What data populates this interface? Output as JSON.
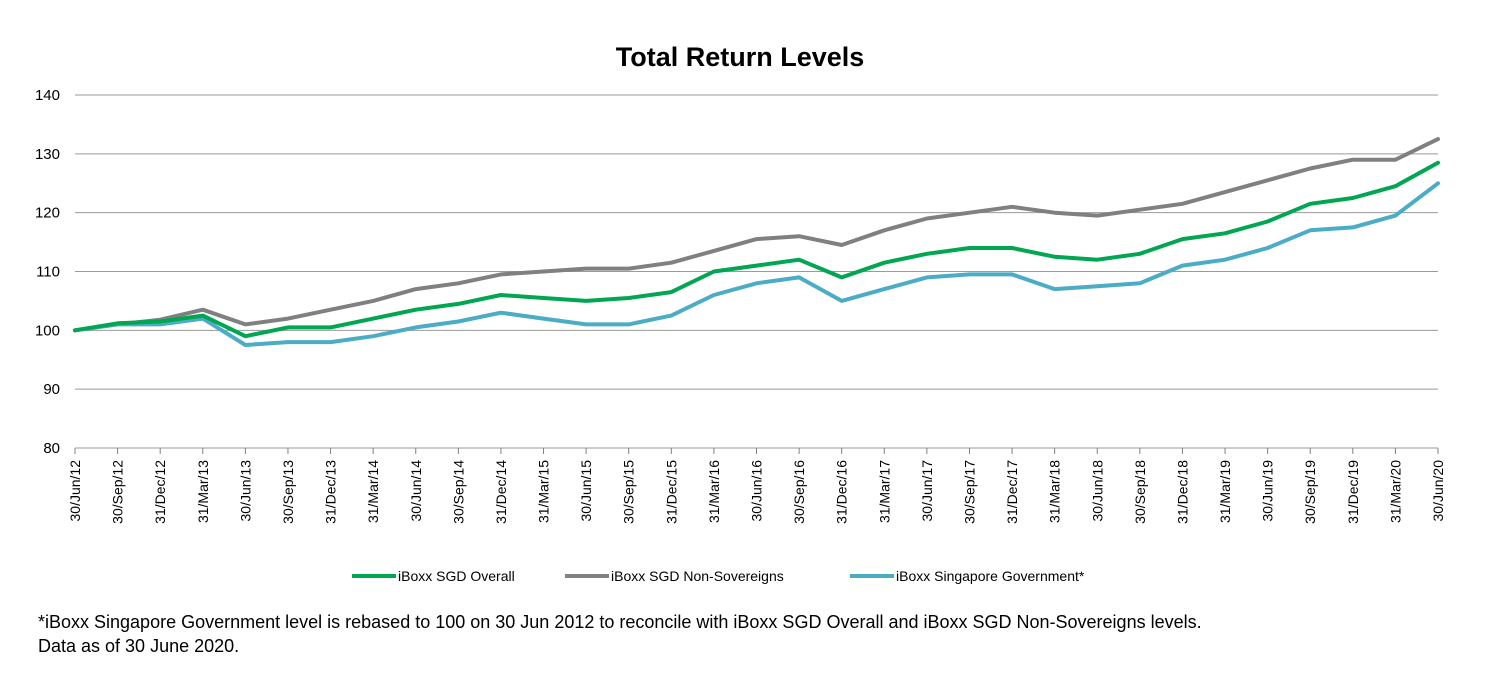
{
  "chart_data": {
    "type": "line",
    "title": "Total Return Levels",
    "xlabel": "",
    "ylabel": "",
    "ylim": [
      80,
      140
    ],
    "yticks": [
      "80",
      "90",
      "100",
      "110",
      "120",
      "130",
      "140"
    ],
    "grid": true,
    "legend_position": "bottom",
    "x": [
      "30/Jun/12",
      "30/Sep/12",
      "31/Dec/12",
      "31/Mar/13",
      "30/Jun/13",
      "30/Sep/13",
      "31/Dec/13",
      "31/Mar/14",
      "30/Jun/14",
      "30/Sep/14",
      "31/Dec/14",
      "31/Mar/15",
      "30/Jun/15",
      "30/Sep/15",
      "31/Dec/15",
      "31/Mar/16",
      "30/Jun/16",
      "30/Sep/16",
      "31/Dec/16",
      "31/Mar/17",
      "30/Jun/17",
      "30/Sep/17",
      "31/Dec/17",
      "31/Mar/18",
      "30/Jun/18",
      "30/Sep/18",
      "31/Dec/18",
      "31/Mar/19",
      "30/Jun/19",
      "30/Sep/19",
      "31/Dec/19",
      "31/Mar/20",
      "30/Jun/20"
    ],
    "series": [
      {
        "name": "iBoxx SGD Overall",
        "color": "#00a651",
        "values": [
          100.0,
          101.2,
          101.5,
          102.5,
          99.0,
          100.5,
          100.5,
          102.0,
          103.5,
          104.5,
          106.0,
          105.5,
          105.0,
          105.5,
          106.5,
          110.0,
          111.0,
          112.0,
          109.0,
          111.5,
          113.0,
          114.0,
          114.0,
          112.5,
          112.0,
          113.0,
          115.5,
          116.5,
          118.5,
          121.5,
          122.5,
          124.5,
          128.5
        ]
      },
      {
        "name": "iBoxx SGD Non-Sovereigns",
        "color": "#808080",
        "values": [
          100.0,
          101.0,
          101.8,
          103.5,
          101.0,
          102.0,
          103.5,
          105.0,
          107.0,
          108.0,
          109.5,
          110.0,
          110.5,
          110.5,
          111.5,
          113.5,
          115.5,
          116.0,
          114.5,
          117.0,
          119.0,
          120.0,
          121.0,
          120.0,
          119.5,
          120.5,
          121.5,
          123.5,
          125.5,
          127.5,
          129.0,
          129.0,
          132.5
        ]
      },
      {
        "name": "iBoxx Singapore Government*",
        "color": "#4bacc6",
        "values": [
          100.0,
          101.0,
          101.0,
          102.0,
          97.5,
          98.0,
          98.0,
          99.0,
          100.5,
          101.5,
          103.0,
          102.0,
          101.0,
          101.0,
          102.5,
          106.0,
          108.0,
          109.0,
          105.0,
          107.0,
          109.0,
          109.5,
          109.5,
          107.0,
          107.5,
          108.0,
          111.0,
          112.0,
          114.0,
          117.0,
          117.5,
          119.5,
          125.0
        ]
      }
    ]
  },
  "footnote": {
    "line1": "*iBoxx Singapore Government level is rebased to 100 on 30 Jun 2012 to reconcile with iBoxx SGD Overall and iBoxx SGD Non-Sovereigns levels.",
    "line2": "Data as of 30 June 2020."
  }
}
